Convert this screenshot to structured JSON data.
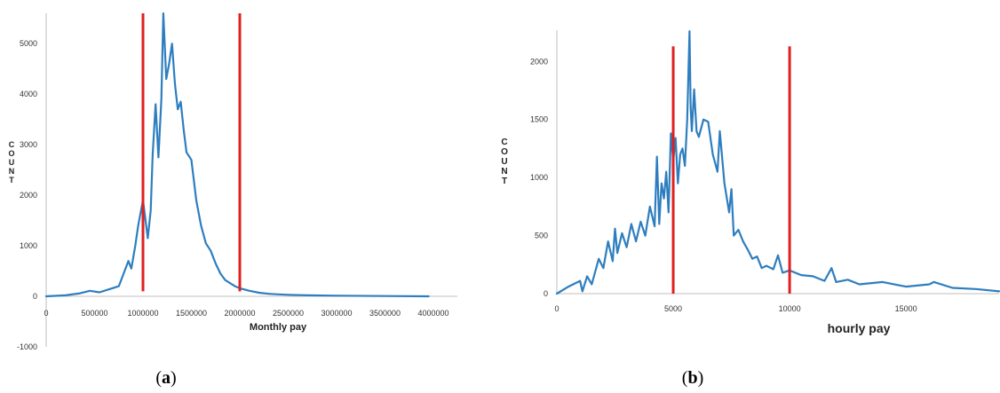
{
  "chart_data": [
    {
      "type": "line",
      "panel_label": "(a)",
      "panel_letter": "a",
      "xlabel": "Monthly pay",
      "ylabel": "COUNT",
      "xlim": [
        0,
        4000000
      ],
      "ylim": [
        -1000,
        5600
      ],
      "x_ticks": [
        0,
        500000,
        1000000,
        1500000,
        2000000,
        2500000,
        3000000,
        3500000,
        4000000
      ],
      "y_ticks": [
        -1000,
        0,
        1000,
        2000,
        3000,
        4000,
        5000
      ],
      "line_color": "#2e7ebf",
      "marker_color": "#e02020",
      "vertical_markers": [
        1000000,
        2000000
      ],
      "marker_range": [
        100,
        5600
      ],
      "series": [
        {
          "x": [
            0,
            200000,
            350000,
            450000,
            550000,
            650000,
            750000,
            800000,
            850000,
            880000,
            920000,
            950000,
            980000,
            1000000,
            1020000,
            1050000,
            1080000,
            1100000,
            1130000,
            1160000,
            1190000,
            1210000,
            1240000,
            1270000,
            1300000,
            1330000,
            1360000,
            1390000,
            1420000,
            1450000,
            1500000,
            1550000,
            1600000,
            1650000,
            1700000,
            1750000,
            1800000,
            1850000,
            1900000,
            1950000,
            2000000,
            2100000,
            2200000,
            2300000,
            2400000,
            2500000,
            2700000,
            3000000,
            3500000,
            3950000
          ],
          "y": [
            0,
            20,
            60,
            110,
            80,
            140,
            200,
            450,
            700,
            550,
            1000,
            1400,
            1700,
            1900,
            1600,
            1150,
            1700,
            2800,
            3800,
            2750,
            3900,
            5600,
            4300,
            4600,
            5000,
            4200,
            3700,
            3850,
            3300,
            2850,
            2700,
            1900,
            1400,
            1050,
            900,
            650,
            450,
            320,
            260,
            200,
            160,
            110,
            70,
            50,
            40,
            30,
            20,
            12,
            5,
            0
          ]
        }
      ]
    },
    {
      "type": "line",
      "panel_label": "(b)",
      "panel_letter": "b",
      "xlabel": "hourly pay",
      "ylabel": "COUNT",
      "xlim": [
        0,
        19000
      ],
      "ylim": [
        0,
        2300
      ],
      "x_ticks": [
        0,
        5000,
        10000,
        15000
      ],
      "y_ticks": [
        0,
        500,
        1000,
        1500,
        2000
      ],
      "line_color": "#2e7ebf",
      "marker_color": "#e02020",
      "vertical_markers": [
        5000,
        10000
      ],
      "marker_range": [
        0,
        2130
      ],
      "series": [
        {
          "x": [
            0,
            500,
            1000,
            1100,
            1300,
            1500,
            1800,
            2000,
            2200,
            2400,
            2500,
            2600,
            2800,
            3000,
            3200,
            3400,
            3600,
            3800,
            4000,
            4200,
            4300,
            4400,
            4500,
            4600,
            4700,
            4800,
            4900,
            5000,
            5100,
            5200,
            5300,
            5400,
            5500,
            5600,
            5700,
            5750,
            5800,
            5900,
            6000,
            6100,
            6300,
            6500,
            6700,
            6900,
            7000,
            7200,
            7400,
            7500,
            7600,
            7800,
            8000,
            8200,
            8400,
            8600,
            8800,
            9000,
            9300,
            9500,
            9700,
            10000,
            10500,
            11000,
            11500,
            11800,
            12000,
            12500,
            13000,
            14000,
            15000,
            16000,
            16200,
            17000,
            18000,
            19000
          ],
          "y": [
            0,
            60,
            110,
            20,
            150,
            80,
            300,
            220,
            450,
            280,
            560,
            350,
            520,
            400,
            600,
            450,
            620,
            500,
            750,
            580,
            1180,
            600,
            950,
            820,
            1050,
            700,
            1380,
            1150,
            1340,
            950,
            1200,
            1250,
            1100,
            1500,
            2260,
            1600,
            1400,
            1760,
            1400,
            1350,
            1500,
            1480,
            1200,
            1050,
            1400,
            950,
            700,
            900,
            500,
            550,
            450,
            380,
            300,
            320,
            220,
            240,
            210,
            330,
            180,
            200,
            160,
            150,
            110,
            220,
            100,
            120,
            80,
            100,
            60,
            80,
            100,
            50,
            40,
            20
          ]
        }
      ]
    }
  ]
}
